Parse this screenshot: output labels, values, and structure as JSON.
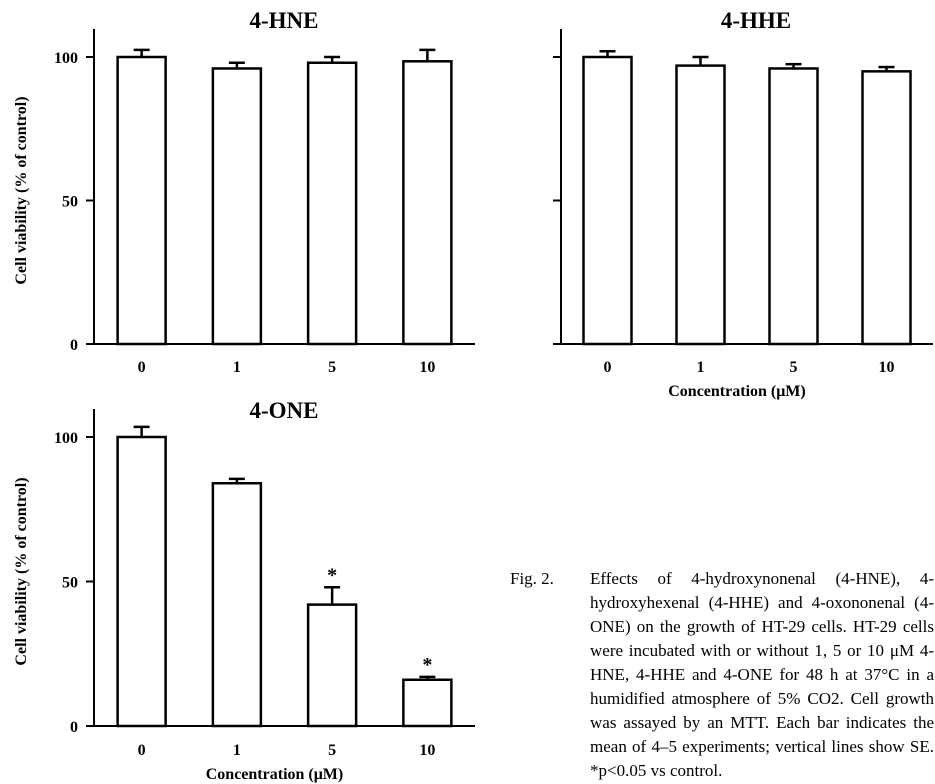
{
  "chart_data": [
    {
      "type": "bar",
      "title": "4-HNE",
      "xlabel": "",
      "ylabel": "Cell viability (% of control)",
      "categories": [
        "0",
        "1",
        "5",
        "10"
      ],
      "values": [
        100,
        96,
        98,
        98.5
      ],
      "errors": [
        2.5,
        2,
        2,
        4
      ],
      "significance": [
        "",
        "",
        "",
        ""
      ],
      "ylim": [
        0,
        100
      ],
      "yticks": [
        "0",
        "50",
        "100"
      ],
      "show_ytick_labels": true,
      "grid": false
    },
    {
      "type": "bar",
      "title": "4-HHE",
      "xlabel": "Concentration (μM)",
      "ylabel": "",
      "categories": [
        "0",
        "1",
        "5",
        "10"
      ],
      "values": [
        100,
        97,
        96,
        95
      ],
      "errors": [
        2,
        3,
        1.5,
        1.5
      ],
      "significance": [
        "",
        "",
        "",
        ""
      ],
      "ylim": [
        0,
        100
      ],
      "yticks": [
        "0",
        "50",
        "100"
      ],
      "show_ytick_labels": false,
      "grid": false
    },
    {
      "type": "bar",
      "title": "4-ONE",
      "xlabel": "Concentration (μM)",
      "ylabel": "Cell viability (% of control)",
      "categories": [
        "0",
        "1",
        "5",
        "10"
      ],
      "values": [
        100,
        84,
        42,
        16
      ],
      "errors": [
        3.5,
        1.5,
        6,
        1
      ],
      "significance": [
        "",
        "",
        "*",
        "*"
      ],
      "ylim": [
        0,
        100
      ],
      "yticks": [
        "0",
        "50",
        "100"
      ],
      "show_ytick_labels": true,
      "grid": false
    }
  ],
  "caption": {
    "label": "Fig. 2.",
    "text": "Effects of 4-hydroxynonenal (4-HNE), 4-hydroxyhexenal (4-HHE) and 4-oxononenal (4-ONE) on the growth of HT-29 cells. HT-29 cells were incubated with or without 1, 5 or 10 μM 4-HNE, 4-HHE and 4-ONE for 48 h at 37°C in a humidified atmosphere of 5% CO2. Cell growth was assayed by an MTT. Each bar indicates the mean of 4–5 experiments; vertical lines show SE. *p<0.05 vs control."
  }
}
